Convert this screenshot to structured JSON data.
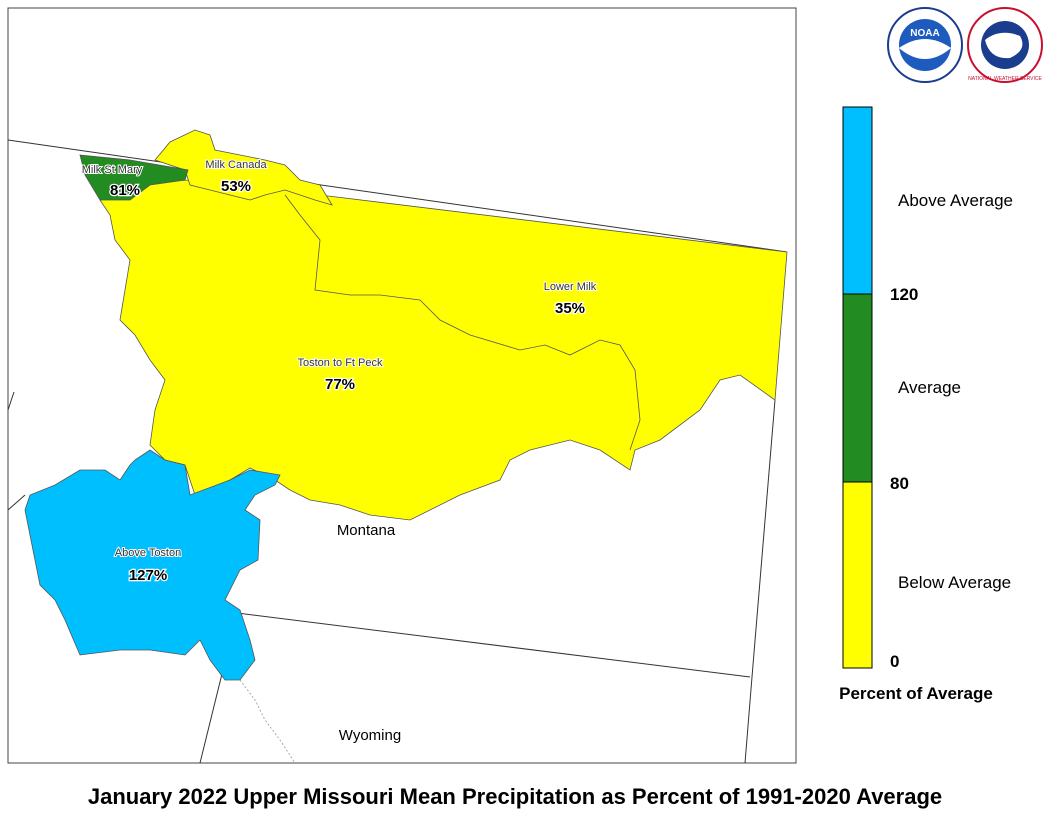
{
  "title": "January 2022 Upper Missouri Mean Precipitation as Percent of 1991-2020 Average",
  "map": {
    "regions": [
      {
        "name": "Milk St Mary",
        "label": "81%",
        "color": "#228b22"
      },
      {
        "name": "Milk Canada",
        "label": "53%",
        "color": "#ffff00"
      },
      {
        "name": "Lower Milk",
        "label": "35%",
        "color": "#ffff00"
      },
      {
        "name": "Toston to Ft Peck",
        "label": "77%",
        "color": "#ffff00"
      },
      {
        "name": "Above Toston",
        "label": "127%",
        "color": "#00bfff"
      }
    ],
    "states": [
      "Montana",
      "Wyoming"
    ]
  },
  "legend": {
    "title": "Percent of Average",
    "classes": [
      {
        "label": "Above Average",
        "color": "#00bfff"
      },
      {
        "label": "Average",
        "color": "#228b22"
      },
      {
        "label": "Below Average",
        "color": "#ffff00"
      }
    ],
    "breaks": [
      120,
      80,
      0
    ]
  },
  "logos": [
    "NOAA",
    "NATIONAL WEATHER SERVICE"
  ]
}
